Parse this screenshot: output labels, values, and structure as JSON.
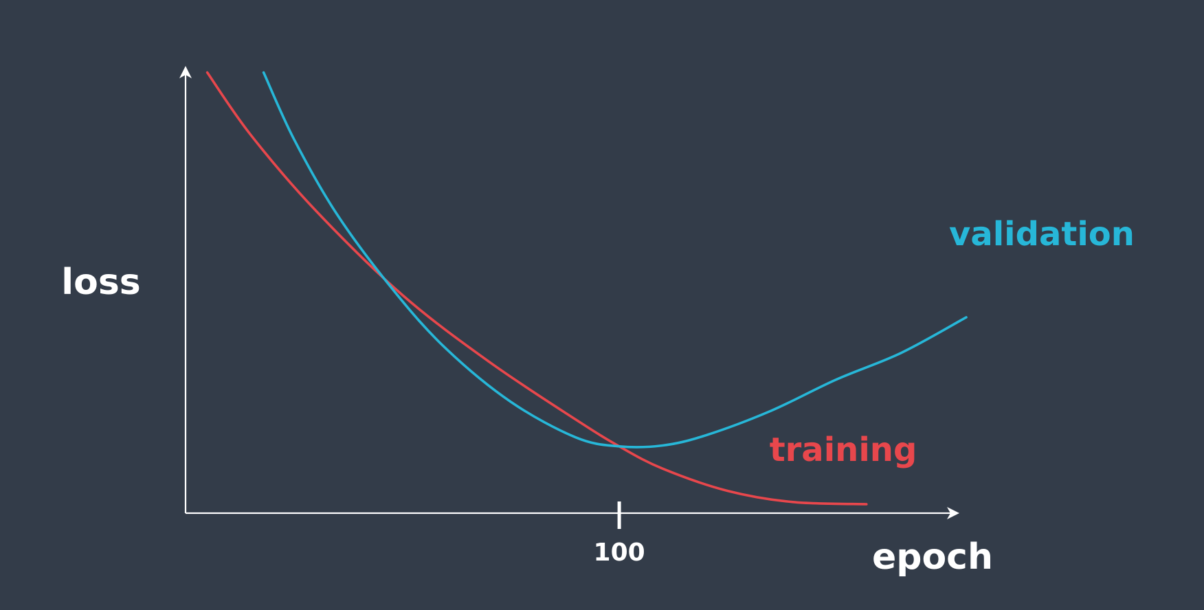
{
  "colors": {
    "background": "#333c49",
    "axis": "#ffffff",
    "training": "#e8474c",
    "validation": "#27b7d8"
  },
  "chart_data": {
    "type": "line",
    "title": "",
    "xlabel": "epoch",
    "ylabel": "loss",
    "xticks": [
      100
    ],
    "xtick_labels": [
      "100"
    ],
    "xlim": [
      0,
      180
    ],
    "ylim": [
      0,
      1
    ],
    "grid": false,
    "legend": "inline labels at right",
    "series": [
      {
        "name": "training",
        "color": "#e8474c",
        "points": [
          [
            5,
            0.99
          ],
          [
            15,
            0.85
          ],
          [
            30,
            0.68
          ],
          [
            50,
            0.49
          ],
          [
            70,
            0.34
          ],
          [
            90,
            0.21
          ],
          [
            100,
            0.15
          ],
          [
            110,
            0.1
          ],
          [
            125,
            0.05
          ],
          [
            140,
            0.025
          ],
          [
            157,
            0.02
          ]
        ]
      },
      {
        "name": "validation",
        "color": "#27b7d8",
        "points": [
          [
            18,
            0.99
          ],
          [
            25,
            0.84
          ],
          [
            35,
            0.67
          ],
          [
            48,
            0.5
          ],
          [
            60,
            0.37
          ],
          [
            75,
            0.25
          ],
          [
            90,
            0.17
          ],
          [
            100,
            0.15
          ],
          [
            110,
            0.152
          ],
          [
            120,
            0.175
          ],
          [
            135,
            0.23
          ],
          [
            150,
            0.3
          ],
          [
            165,
            0.36
          ],
          [
            180,
            0.44
          ]
        ]
      }
    ]
  }
}
